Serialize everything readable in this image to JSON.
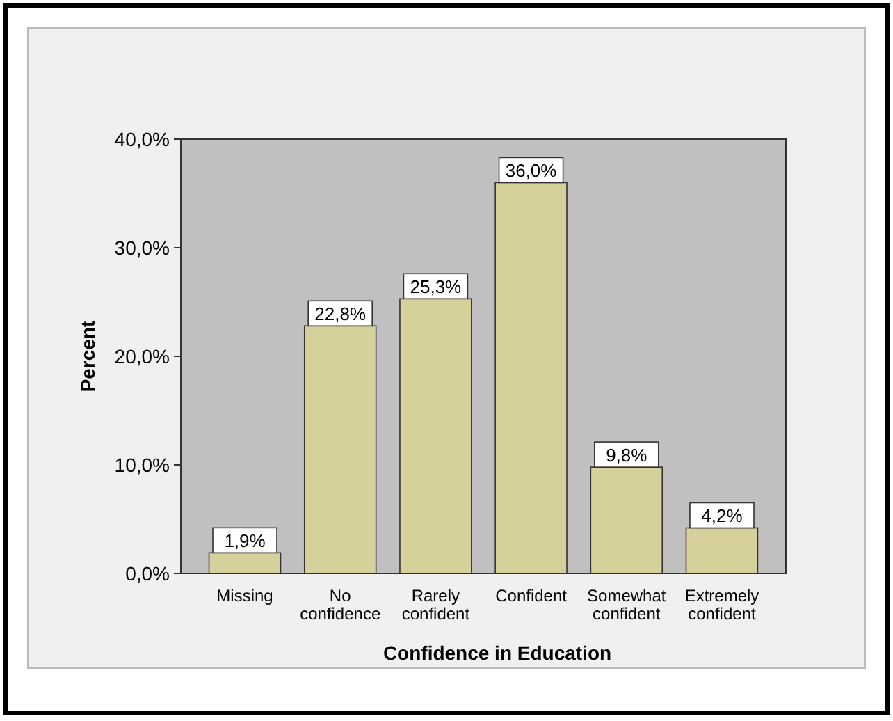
{
  "chart_data": {
    "type": "bar",
    "xlabel": "Confidence in Education",
    "ylabel": "Percent",
    "categories": [
      "Missing",
      "No confidence",
      "Rarely confident",
      "Confident",
      "Somewhat confident",
      "Extremely confident"
    ],
    "values": [
      1.9,
      22.8,
      25.3,
      36.0,
      9.8,
      4.2
    ],
    "value_labels": [
      "1,9%",
      "22,8%",
      "25,3%",
      "36,0%",
      "9,8%",
      "4,2%"
    ],
    "color": "#d6d09a",
    "ylim": [
      0,
      40
    ],
    "yticks": [
      {
        "value": 0,
        "label": "0,0%"
      },
      {
        "value": 10,
        "label": "10,0%"
      },
      {
        "value": 20,
        "label": "20,0%"
      },
      {
        "value": 30,
        "label": "30,0%"
      },
      {
        "value": 40,
        "label": "40,0%"
      }
    ],
    "grid": false
  }
}
